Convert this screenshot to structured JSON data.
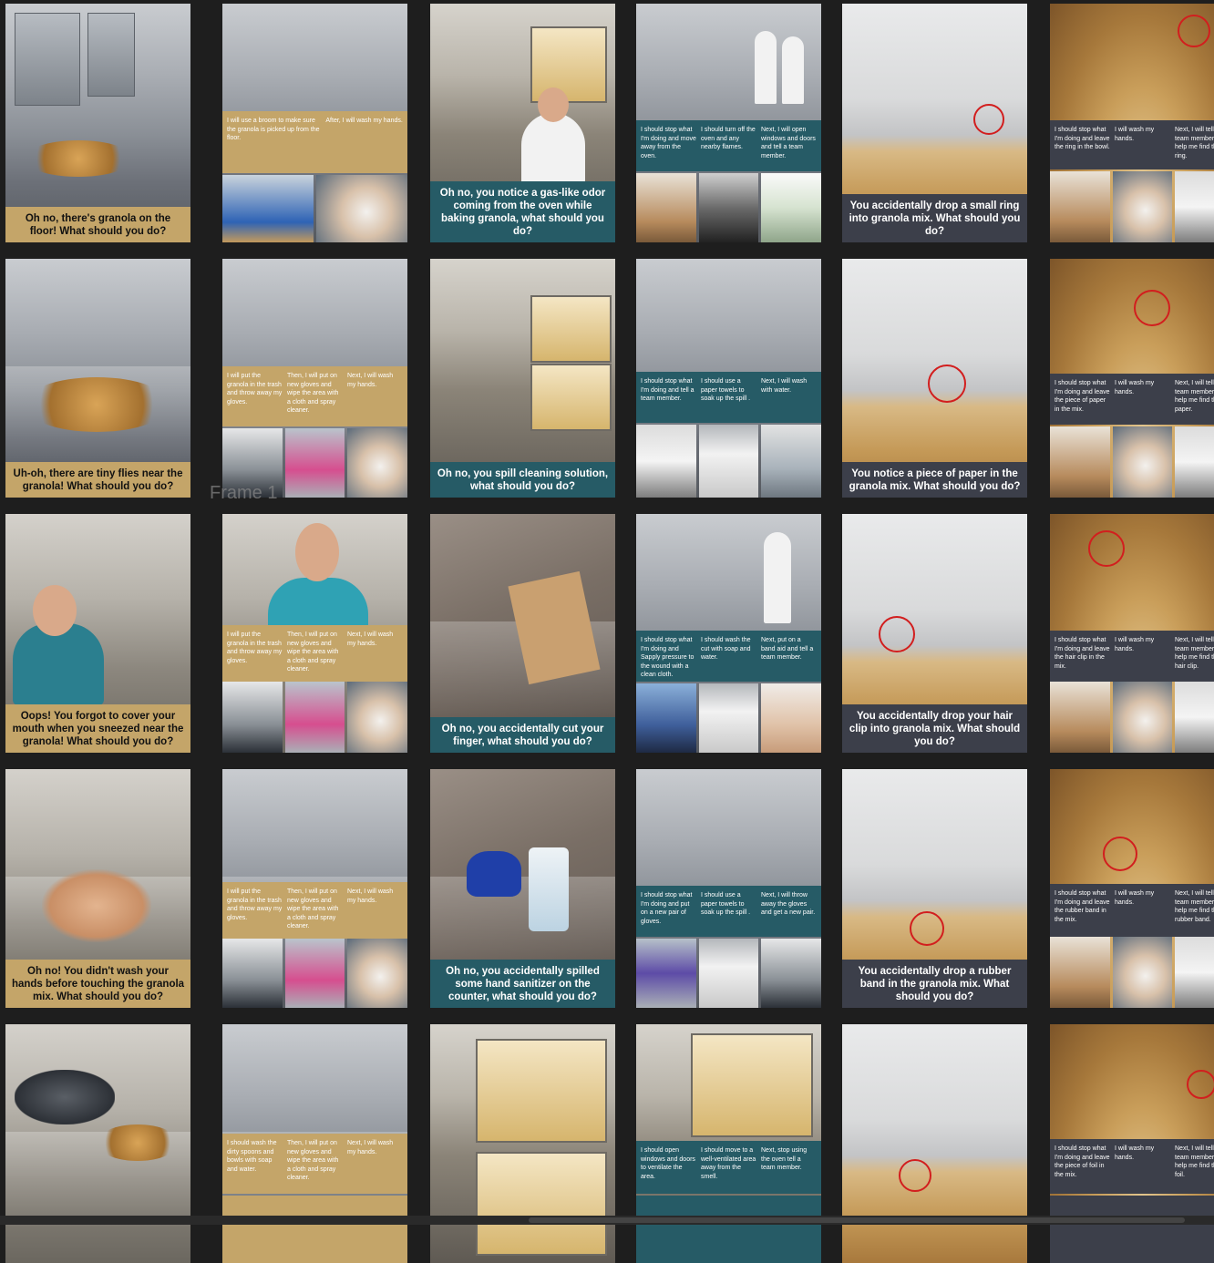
{
  "frame_label": "Frame 1",
  "cards": [
    {
      "caption": "Oh no, there's granola on the floor! What should you do?"
    },
    {
      "opts": [
        "I will use a broom to make sure the granola is picked up from the floor.",
        "After, I will wash my hands."
      ]
    },
    {
      "caption": "Oh no, you notice a gas-like odor coming from the oven while baking granola, what should you do?"
    },
    {
      "opts": [
        "I should stop what I'm doing and move away from the oven.",
        "I should turn off the oven and any nearby flames.",
        "Next, I will open windows and doors and tell a team member."
      ]
    },
    {
      "caption": "You accidentally drop a small ring into granola mix. What should you do?"
    },
    {
      "opts": [
        "I should stop what I'm doing and leave the ring in the bowl.",
        "I will wash my hands.",
        "Next,  I will tell a team member to help me find the ring."
      ]
    },
    {
      "caption": "Uh-oh, there are tiny flies near the granola! What should you do?"
    },
    {
      "opts": [
        "I will put the granola in the trash and throw away my gloves.",
        "Then, I will put on new gloves and wipe the area with a cloth and spray cleaner.",
        "Next, I will wash my hands."
      ]
    },
    {
      "caption": "Oh no, you spill cleaning solution, what should you do?"
    },
    {
      "opts": [
        "I should stop what I'm doing and tell a team member.",
        "I should use a paper towels to soak up the spill .",
        "Next, I will wash with water."
      ]
    },
    {
      "caption": "You notice a piece of paper in the granola mix. What should you do?"
    },
    {
      "opts": [
        "I should stop what I'm doing and leave the piece of paper in the mix.",
        "I will wash my hands.",
        "Next,  I will tell a team member to help me find the paper."
      ]
    },
    {
      "caption": "Oops! You forgot to cover your mouth when you sneezed near the granola! What should you do?"
    },
    {
      "opts": [
        "I will put the granola in the trash and throw away my gloves.",
        "Then, I will put on new gloves and wipe the area with a cloth and spray cleaner.",
        "Next, I will wash my hands."
      ]
    },
    {
      "caption": "Oh no, you accidentally cut your finger, what should you do?"
    },
    {
      "opts": [
        "I should stop what I'm doing and Sapply pressure to the wound with a clean cloth.",
        "I should wash the cut with soap and water.",
        "Next,  put on a band aid and tell a team member."
      ]
    },
    {
      "caption": "You accidentally drop your hair clip into granola mix. What should you do?"
    },
    {
      "opts": [
        "I should stop what I'm doing and leave the hair clip in the mix.",
        "I will wash my hands.",
        "Next,  I will tell a team member to help me find the hair clip."
      ]
    },
    {
      "caption": "Oh no! You didn't wash your hands before touching the granola mix. What should you do?"
    },
    {
      "opts": [
        "I will put the granola in the trash and throw away my gloves.",
        "Then, I will put on new gloves and wipe the area with a cloth and spray cleaner.",
        "Next, I will wash my hands."
      ]
    },
    {
      "caption": "Oh no, you accidentally spilled some hand sanitizer on the counter, what should you do?"
    },
    {
      "opts": [
        "I should stop what I'm doing and put on a new pair of gloves.",
        "I should use a paper towels to soak up the spill .",
        "Next,  I will throw away the gloves and get a new pair."
      ]
    },
    {
      "caption": "You accidentally drop a rubber band in the granola mix. What should you do?"
    },
    {
      "opts": [
        "I should stop what I'm doing and leave the rubber band in the mix.",
        "I will wash my hands.",
        "Next,  I will tell a team member to help me find the rubber band."
      ]
    },
    {
      "caption": ""
    },
    {
      "opts": [
        "I should wash the dirty spoons and bowls with soap and water.",
        "Then, I will put on new gloves and wipe the area with a cloth and spray cleaner.",
        "Next, I will wash my hands."
      ]
    },
    {
      "caption": ""
    },
    {
      "opts": [
        "I should open windows and doors to ventilate the area.",
        "I should move to a well-ventilated area away from the smell.",
        "Next, stop using the oven tell a team member."
      ]
    },
    {
      "caption": ""
    },
    {
      "opts": [
        "I should stop what I'm doing and leave the piece of foil  in the mix.",
        "I will wash my hands.",
        "Next,  I will tell a team member to help me find the foil."
      ]
    }
  ],
  "colors": {
    "gold": "#c4a569",
    "teal": "#265b66",
    "slate": "#3c3f4a",
    "background": "#1e1e1e"
  }
}
